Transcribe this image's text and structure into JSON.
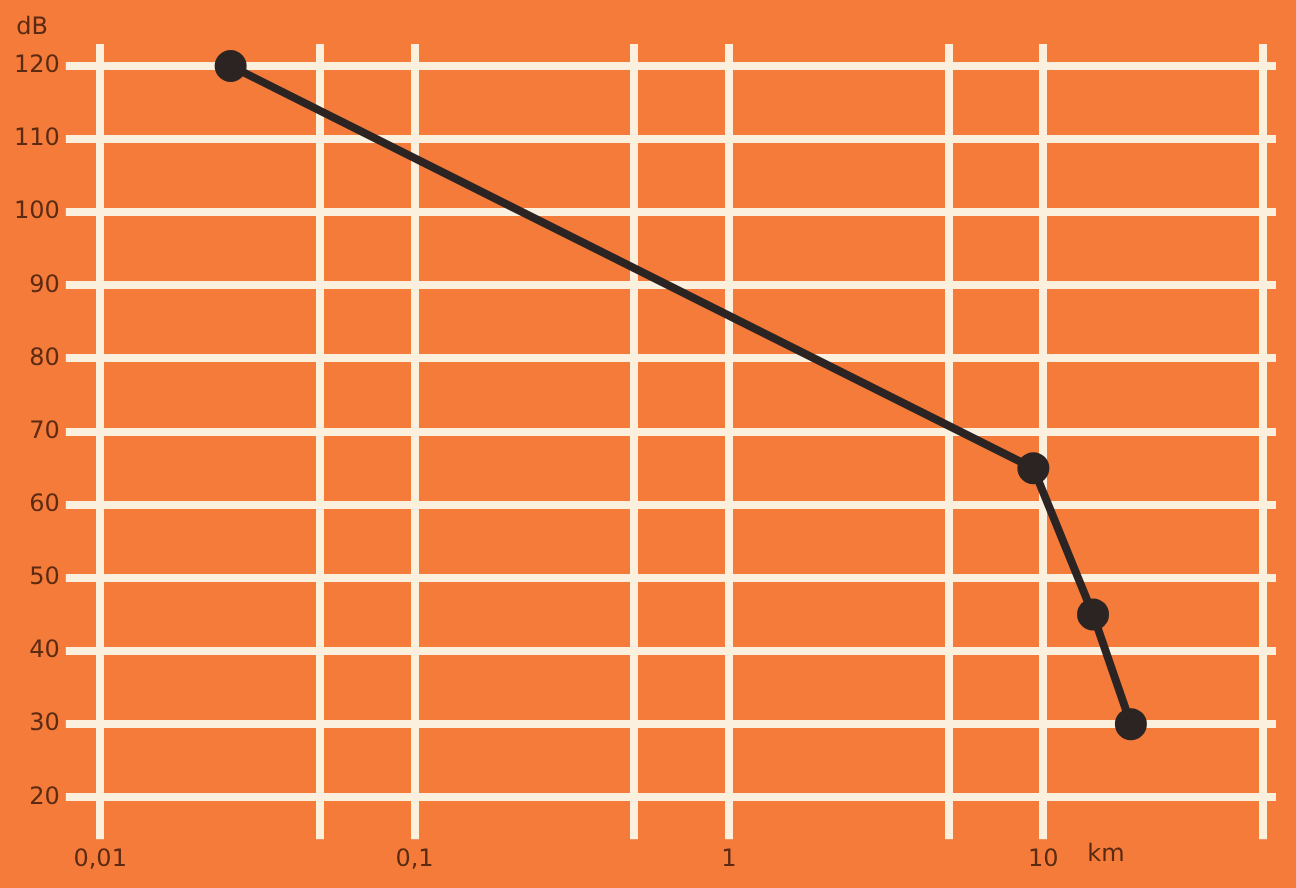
{
  "chart_data": {
    "type": "line",
    "xlabel": "km",
    "ylabel": "dB",
    "log": "x",
    "xlim": [
      0.009,
      55
    ],
    "ylim": [
      17,
      123
    ],
    "xticks": [
      {
        "value": 0.01,
        "label": "0,01"
      },
      {
        "value": 0.05,
        "label": null
      },
      {
        "value": 0.1,
        "label": "0,1"
      },
      {
        "value": 0.5,
        "label": null
      },
      {
        "value": 1,
        "label": "1"
      },
      {
        "value": 5,
        "label": null
      },
      {
        "value": 10,
        "label": "10"
      },
      {
        "value": 50,
        "label": null
      }
    ],
    "yticks": [
      20,
      30,
      40,
      50,
      60,
      70,
      80,
      90,
      100,
      110,
      120
    ],
    "grid": true,
    "marker": "circle",
    "line_style": "solid",
    "legend": false,
    "series": [
      {
        "color": "#2b2422",
        "x": [
          0.026,
          9.3,
          14.4,
          19
        ],
        "values": [
          120,
          65,
          45,
          30
        ]
      }
    ]
  }
}
